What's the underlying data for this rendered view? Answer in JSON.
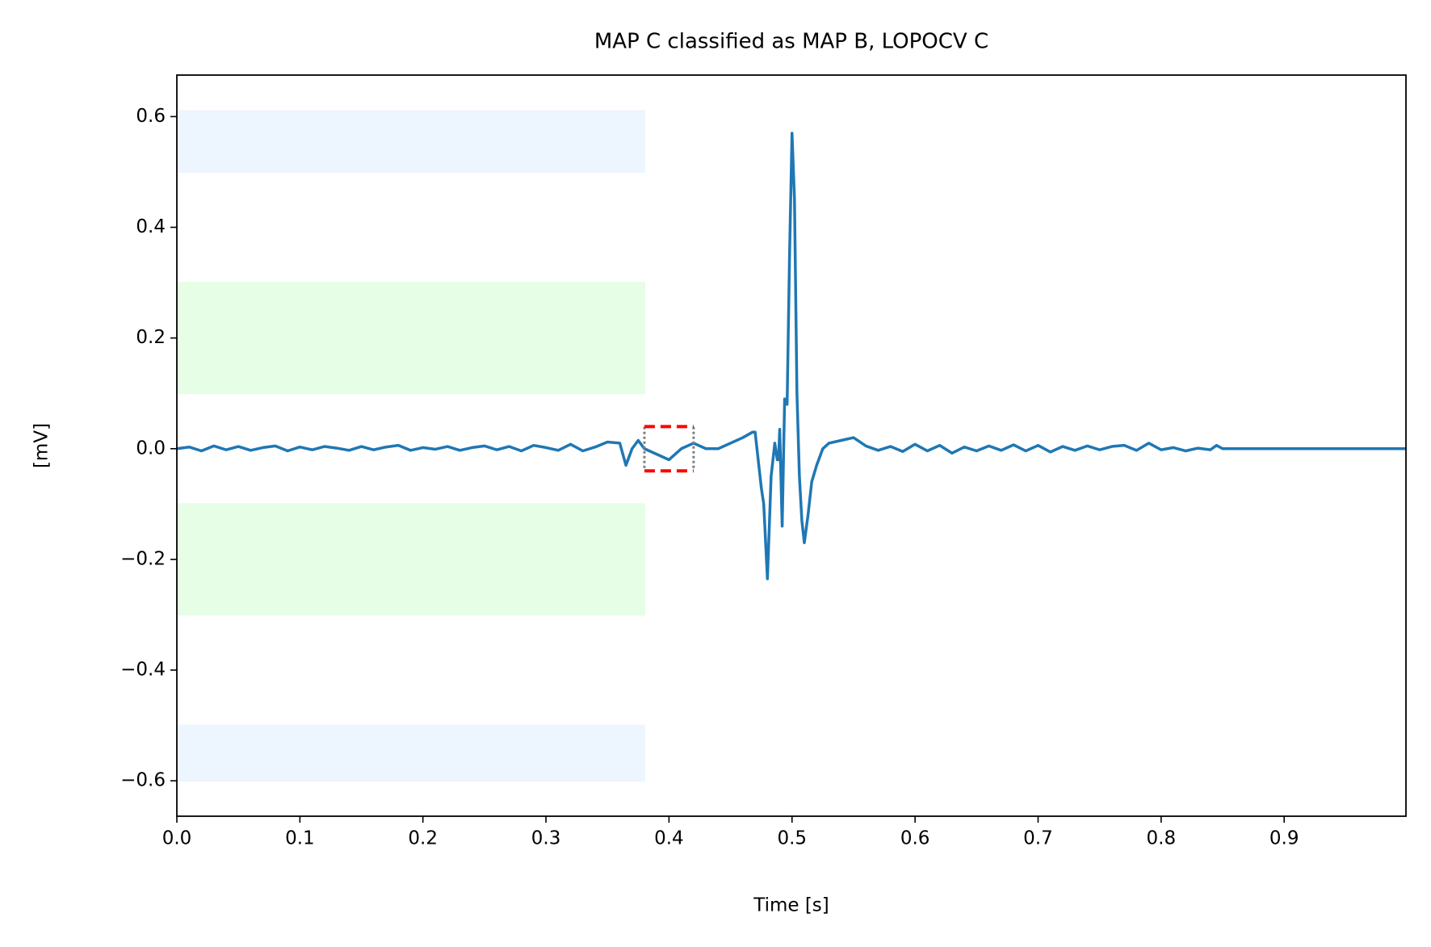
{
  "chart_data": {
    "type": "line",
    "title": "MAP C classified as MAP B, LOPOCV C",
    "xlabel": "Time [s]",
    "ylabel": "[mV]",
    "x": [
      0,
      0.01,
      0.02,
      0.03,
      0.04,
      0.05,
      0.06,
      0.07,
      0.08,
      0.09,
      0.1,
      0.11,
      0.12,
      0.13,
      0.14,
      0.15,
      0.16,
      0.17,
      0.18,
      0.19,
      0.2,
      0.21,
      0.22,
      0.23,
      0.24,
      0.25,
      0.26,
      0.27,
      0.28,
      0.29,
      0.3,
      0.31,
      0.32,
      0.33,
      0.34,
      0.35,
      0.36,
      0.365,
      0.37,
      0.375,
      0.38,
      0.39,
      0.4,
      0.41,
      0.42,
      0.43,
      0.44,
      0.45,
      0.46,
      0.468,
      0.47,
      0.475,
      0.477,
      0.48,
      0.483,
      0.486,
      0.488,
      0.489,
      0.49,
      0.492,
      0.494,
      0.496,
      0.498,
      0.5,
      0.502,
      0.504,
      0.506,
      0.508,
      0.51,
      0.513,
      0.516,
      0.52,
      0.525,
      0.53,
      0.54,
      0.55,
      0.56,
      0.57,
      0.58,
      0.59,
      0.6,
      0.61,
      0.62,
      0.63,
      0.64,
      0.65,
      0.66,
      0.67,
      0.68,
      0.69,
      0.7,
      0.71,
      0.72,
      0.73,
      0.74,
      0.75,
      0.76,
      0.77,
      0.78,
      0.79,
      0.8,
      0.81,
      0.82,
      0.83,
      0.84,
      0.845,
      0.85,
      0.999
    ],
    "series": [
      {
        "color": "#1f77b4",
        "values": [
          0,
          0.003,
          -0.004,
          0.005,
          -0.002,
          0.004,
          -0.003,
          0.002,
          0.005,
          -0.004,
          0.003,
          -0.002,
          0.004,
          0.001,
          -0.003,
          0.004,
          -0.002,
          0.003,
          0.006,
          -0.003,
          0.002,
          -0.001,
          0.004,
          -0.003,
          0.002,
          0.005,
          -0.002,
          0.004,
          -0.004,
          0.006,
          0.002,
          -0.003,
          0.008,
          -0.004,
          0.003,
          0.012,
          0.01,
          -0.03,
          0.0,
          0.015,
          0.0,
          -0.01,
          -0.02,
          0.0,
          0.01,
          0.0,
          0.0,
          0.01,
          0.02,
          0.03,
          0.03,
          -0.07,
          -0.1,
          -0.235,
          -0.05,
          0.01,
          -0.02,
          -0.02,
          0.035,
          -0.14,
          0.09,
          0.08,
          0.35,
          0.57,
          0.45,
          0.1,
          -0.05,
          -0.13,
          -0.17,
          -0.12,
          -0.06,
          -0.03,
          0.0,
          0.01,
          0.015,
          0.02,
          0.005,
          -0.003,
          0.004,
          -0.005,
          0.008,
          -0.004,
          0.006,
          -0.008,
          0.003,
          -0.004,
          0.005,
          -0.003,
          0.007,
          -0.004,
          0.006,
          -0.006,
          0.004,
          -0.003,
          0.005,
          -0.002,
          0.004,
          0.006,
          -0.003,
          0.01,
          -0.002,
          0.002,
          -0.004,
          0.001,
          -0.002,
          0.006,
          0,
          0
        ]
      }
    ],
    "bands": [
      {
        "x0": 0,
        "x1": 0.38,
        "y0": 0.5,
        "y1": 0.61,
        "color": "#edf5fe"
      },
      {
        "x0": 0,
        "x1": 0.38,
        "y0": 0.1,
        "y1": 0.3,
        "color": "#e5fee5"
      },
      {
        "x0": 0,
        "x1": 0.38,
        "y0": -0.1,
        "y1": -0.3,
        "color": "#e5fee5"
      },
      {
        "x0": 0,
        "x1": 0.38,
        "y0": -0.5,
        "y1": -0.6,
        "color": "#edf5fe"
      }
    ],
    "highlight": {
      "x0": 0.38,
      "x1": 0.42,
      "y0": -0.04,
      "y1": 0.04,
      "color": "#ff0000"
    },
    "markers": {
      "x0": 0.38,
      "x1": 0.42,
      "y0": -0.035,
      "y1": 0.04,
      "color": "#808080"
    },
    "xlim": [
      0,
      0.999
    ],
    "ylim": [
      -0.664,
      0.675
    ],
    "xticks": [
      {
        "value": 0,
        "label": "0.0"
      },
      0.1,
      0.2,
      0.3,
      0.4,
      0.5,
      0.6,
      0.7,
      0.8,
      0.9
    ],
    "yticks": [
      {
        "value": -0.6,
        "label": "−0.6"
      },
      {
        "value": -0.4,
        "label": "−0.4"
      },
      {
        "value": -0.2,
        "label": "−0.2"
      },
      {
        "value": 0,
        "label": "0.0"
      },
      0.2,
      0.4,
      0.6
    ]
  }
}
